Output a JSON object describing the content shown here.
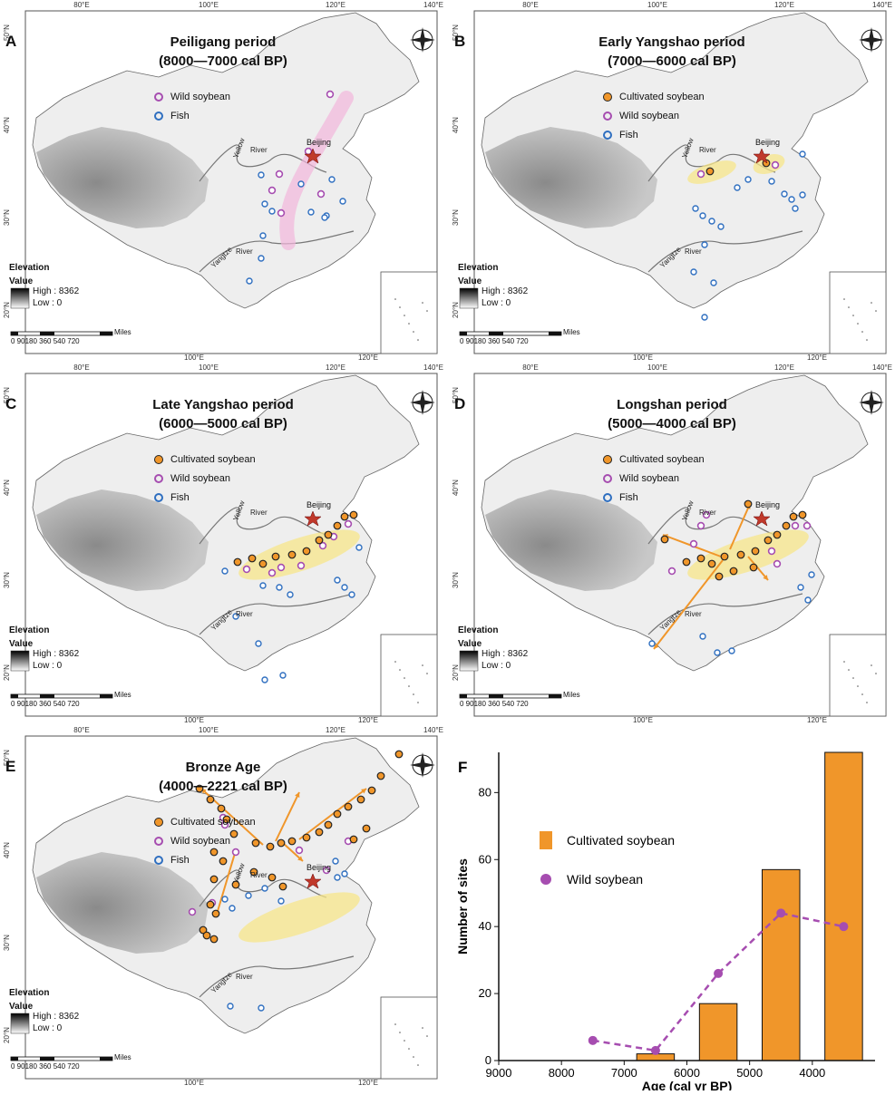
{
  "panels": [
    {
      "letter": "A",
      "title": "Peiligang period",
      "subtitle": "(8000—7000 cal BP)",
      "legend": [
        "Wild soybean",
        "Fish"
      ]
    },
    {
      "letter": "B",
      "title": "Early Yangshao period",
      "subtitle": "(7000—6000 cal BP)",
      "legend": [
        "Cultivated soybean",
        "Wild soybean",
        "Fish"
      ]
    },
    {
      "letter": "C",
      "title": "Late Yangshao period",
      "subtitle": "(6000—5000 cal BP)",
      "legend": [
        "Cultivated soybean",
        "Wild soybean",
        "Fish"
      ]
    },
    {
      "letter": "D",
      "title": "Longshan period",
      "subtitle": "(5000—4000 cal BP)",
      "legend": [
        "Cultivated soybean",
        "Wild soybean",
        "Fish"
      ]
    },
    {
      "letter": "E",
      "title": "Bronze Age",
      "subtitle": "(4000—2221 cal BP)",
      "legend": [
        "Cultivated soybean",
        "Wild soybean",
        "Fish"
      ]
    }
  ],
  "map_labels": {
    "beijing": "Beijing",
    "yellow": "Yellow",
    "river": "River",
    "yangtze": "Yangtze",
    "elevation": "Elevation",
    "value": "Value",
    "high": "High : 8362",
    "low": "Low : 0",
    "miles": "Miles",
    "scale": "0 90180   360   540   720",
    "lon": [
      "80°E",
      "100°E",
      "120°E",
      "140°E"
    ],
    "lon_bottom": [
      "100°E",
      "120°E"
    ],
    "lat": [
      "50°N",
      "40°N",
      "30°N",
      "20°N"
    ]
  },
  "colors": {
    "cultivated": "#f0962a",
    "wild": "#a64db0",
    "fish": "#2f6fc0",
    "beijing": "#c0392b",
    "highlight_yellow": "#f7e58a",
    "highlight_pink": "#f2b6dc"
  },
  "chart_data": {
    "letter": "F",
    "type": "bar",
    "xlabel": "Age (cal yr BP)",
    "ylabel": "Number of sites",
    "xlim": [
      9000,
      3000
    ],
    "ylim": [
      0,
      92
    ],
    "xticks": [
      9000,
      8000,
      7000,
      6000,
      5000,
      4000
    ],
    "yticks": [
      0,
      20,
      40,
      60,
      80
    ],
    "series": [
      {
        "name": "Cultivated soybean",
        "type": "bar",
        "x": [
          6500,
          5500,
          4500,
          3500
        ],
        "values": [
          2,
          17,
          57,
          92
        ],
        "color": "#f0962a"
      },
      {
        "name": "Wild soybean",
        "type": "line",
        "x": [
          7500,
          6500,
          5500,
          4500,
          3500
        ],
        "values": [
          6,
          3,
          26,
          44,
          40
        ],
        "color": "#a64db0"
      }
    ]
  }
}
